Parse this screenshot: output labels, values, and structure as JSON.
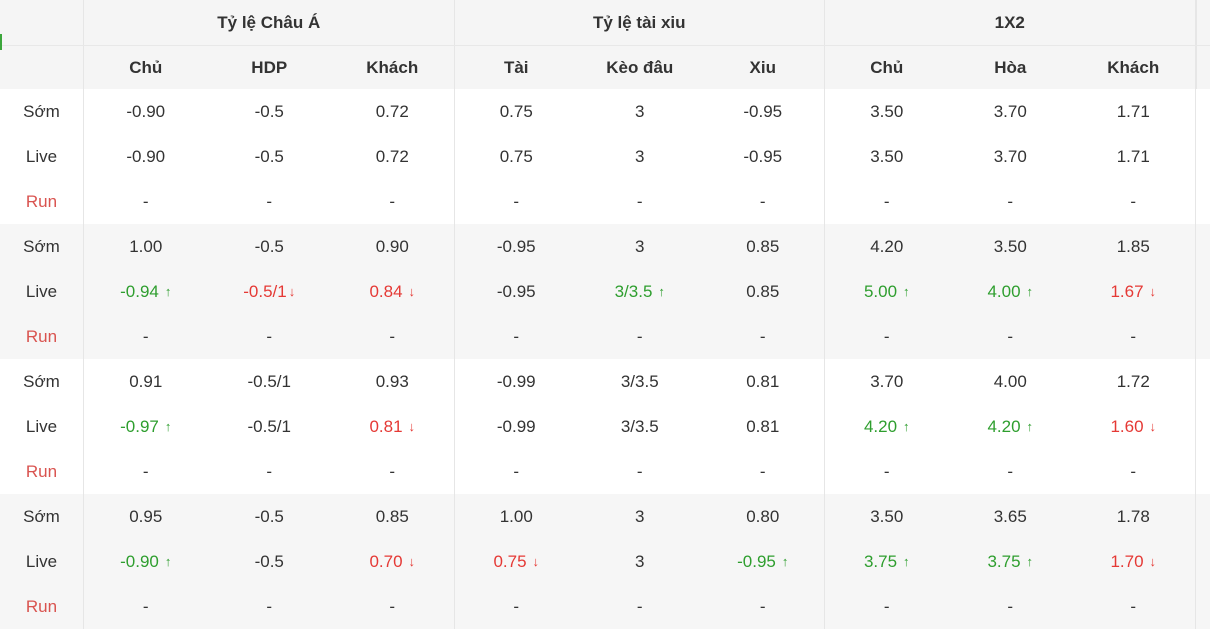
{
  "headers": {
    "groups": [
      "Tỷ lệ Châu Á",
      "Tỷ lệ tài xiu",
      "1X2"
    ],
    "columns": [
      "Chủ",
      "HDP",
      "Khách",
      "Tài",
      "Kèo đâu",
      "Xiu",
      "Chủ",
      "Hòa",
      "Khách"
    ]
  },
  "labels": {
    "early": "Sớm",
    "live": "Live",
    "run": "Run"
  },
  "colors": {
    "up": "#2e9e2e",
    "down": "#e53935",
    "run": "#d9534f",
    "band": "#f6f6f6"
  },
  "icons": {
    "up": "arrow-up-icon",
    "down": "arrow-down-icon"
  },
  "blocks": [
    {
      "early": [
        "-0.90",
        "-0.5",
        "0.72",
        "0.75",
        "3",
        "-0.95",
        "3.50",
        "3.70",
        "1.71"
      ],
      "live": [
        {
          "v": "-0.90"
        },
        {
          "v": "-0.5"
        },
        {
          "v": "0.72"
        },
        {
          "v": "0.75"
        },
        {
          "v": "3"
        },
        {
          "v": "-0.95"
        },
        {
          "v": "3.50"
        },
        {
          "v": "3.70"
        },
        {
          "v": "1.71"
        }
      ],
      "run": [
        "-",
        "-",
        "-",
        "-",
        "-",
        "-",
        "-",
        "-",
        "-"
      ]
    },
    {
      "early": [
        "1.00",
        "-0.5",
        "0.90",
        "-0.95",
        "3",
        "0.85",
        "4.20",
        "3.50",
        "1.85"
      ],
      "live": [
        {
          "v": "-0.94",
          "t": "up"
        },
        {
          "v": "-0.5/1",
          "t": "down"
        },
        {
          "v": "0.84",
          "t": "down"
        },
        {
          "v": "-0.95"
        },
        {
          "v": "3/3.5",
          "t": "up"
        },
        {
          "v": "0.85"
        },
        {
          "v": "5.00",
          "t": "up"
        },
        {
          "v": "4.00",
          "t": "up"
        },
        {
          "v": "1.67",
          "t": "down"
        }
      ],
      "run": [
        "-",
        "-",
        "-",
        "-",
        "-",
        "-",
        "-",
        "-",
        "-"
      ]
    },
    {
      "early": [
        "0.91",
        "-0.5/1",
        "0.93",
        "-0.99",
        "3/3.5",
        "0.81",
        "3.70",
        "4.00",
        "1.72"
      ],
      "live": [
        {
          "v": "-0.97",
          "t": "up"
        },
        {
          "v": "-0.5/1"
        },
        {
          "v": "0.81",
          "t": "down"
        },
        {
          "v": "-0.99"
        },
        {
          "v": "3/3.5"
        },
        {
          "v": "0.81"
        },
        {
          "v": "4.20",
          "t": "up"
        },
        {
          "v": "4.20",
          "t": "up"
        },
        {
          "v": "1.60",
          "t": "down"
        }
      ],
      "run": [
        "-",
        "-",
        "-",
        "-",
        "-",
        "-",
        "-",
        "-",
        "-"
      ]
    },
    {
      "early": [
        "0.95",
        "-0.5",
        "0.85",
        "1.00",
        "3",
        "0.80",
        "3.50",
        "3.65",
        "1.78"
      ],
      "live": [
        {
          "v": "-0.90",
          "t": "up"
        },
        {
          "v": "-0.5"
        },
        {
          "v": "0.70",
          "t": "down"
        },
        {
          "v": "0.75",
          "t": "down"
        },
        {
          "v": "3"
        },
        {
          "v": "-0.95",
          "t": "up"
        },
        {
          "v": "3.75",
          "t": "up"
        },
        {
          "v": "3.75",
          "t": "up"
        },
        {
          "v": "1.70",
          "t": "down"
        }
      ],
      "run": [
        "-",
        "-",
        "-",
        "-",
        "-",
        "-",
        "-",
        "-",
        "-"
      ]
    }
  ]
}
